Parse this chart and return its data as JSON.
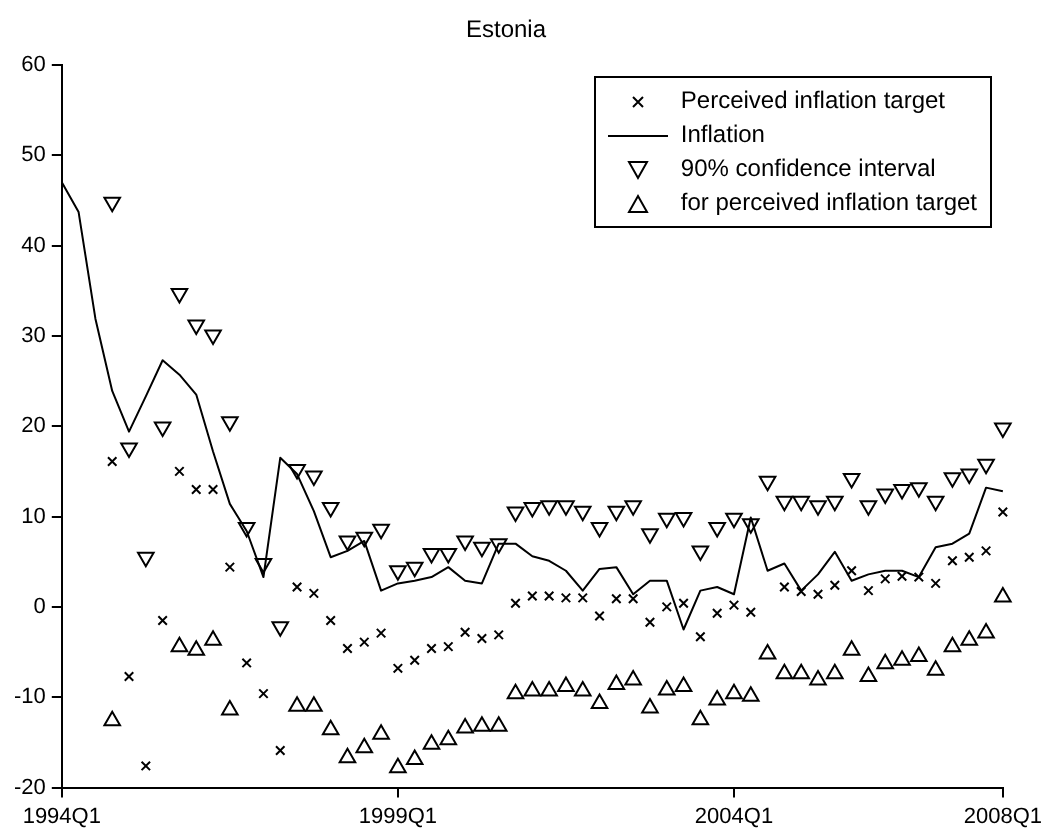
{
  "chart_data": {
    "type": "line",
    "title": "Estonia",
    "categories": [
      "1994Q1",
      null,
      null,
      null,
      null,
      null,
      null,
      null,
      null,
      null,
      null,
      null,
      null,
      null,
      null,
      null,
      null,
      null,
      null,
      null,
      "1999Q1",
      null,
      null,
      null,
      null,
      null,
      null,
      null,
      null,
      null,
      null,
      null,
      null,
      null,
      null,
      null,
      null,
      null,
      null,
      null,
      "2004Q1",
      null,
      null,
      null,
      null,
      null,
      null,
      null,
      null,
      null,
      null,
      null,
      null,
      null,
      null,
      null,
      "2008Q1"
    ],
    "series": [
      {
        "name": "Perceived inflation target",
        "type": "scatter",
        "marker": "cross",
        "color": "#000000",
        "values": [
          null,
          null,
          null,
          16.1,
          -7.7,
          -17.6,
          -1.5,
          15.0,
          13.0,
          13.0,
          4.4,
          -6.2,
          -9.6,
          -15.9,
          2.2,
          1.5,
          -1.5,
          -4.6,
          -3.9,
          -2.9,
          -6.8,
          -5.9,
          -4.6,
          -4.4,
          -2.8,
          -3.5,
          -3.1,
          0.4,
          1.2,
          1.2,
          1.0,
          1.0,
          -1.0,
          0.9,
          0.9,
          -1.7,
          0.0,
          0.4,
          -3.3,
          -0.7,
          0.2,
          -0.6,
          null,
          2.2,
          1.7,
          1.4,
          2.4,
          4.0,
          1.8,
          3.1,
          3.4,
          3.3,
          2.6,
          5.1,
          5.5,
          6.2,
          10.5
        ]
      },
      {
        "name": "Inflation",
        "type": "line",
        "marker": "none",
        "line_style": "solid",
        "color": "#000000",
        "values": [
          47.0,
          43.7,
          31.9,
          23.9,
          19.4,
          23.3,
          27.3,
          25.7,
          23.5,
          17.2,
          11.4,
          8.4,
          3.3,
          16.5,
          14.7,
          10.6,
          5.5,
          6.2,
          7.3,
          1.8,
          2.6,
          2.9,
          3.3,
          4.4,
          2.9,
          2.6,
          7.0,
          7.0,
          5.6,
          5.1,
          4.0,
          1.8,
          4.2,
          4.4,
          1.4,
          2.9,
          2.9,
          -2.5,
          1.8,
          2.2,
          1.4,
          9.9,
          4.0,
          4.8,
          1.8,
          3.6,
          6.1,
          2.9,
          3.6,
          4.0,
          4.0,
          3.3,
          6.6,
          7.0,
          8.1,
          13.2,
          12.8
        ]
      },
      {
        "name": "90% confidence interval",
        "type": "scatter",
        "marker": "triangle_down",
        "color": "#000000",
        "values": [
          null,
          null,
          null,
          44.8,
          17.6,
          5.5,
          19.9,
          34.7,
          31.2,
          30.1,
          20.5,
          8.8,
          4.8,
          -2.2,
          15.2,
          14.5,
          11.0,
          7.3,
          7.7,
          8.6,
          4.0,
          4.4,
          5.9,
          5.9,
          7.3,
          6.6,
          7.0,
          10.5,
          11.0,
          11.2,
          11.2,
          10.6,
          8.8,
          10.6,
          11.2,
          8.1,
          9.8,
          9.9,
          6.2,
          8.8,
          9.8,
          9.2,
          13.9,
          11.7,
          11.7,
          11.2,
          11.7,
          14.2,
          11.2,
          12.5,
          13.0,
          13.2,
          11.7,
          14.3,
          14.7,
          15.8,
          19.8
        ]
      },
      {
        "name": "for perceived inflation target",
        "type": "scatter",
        "marker": "triangle",
        "color": "#000000",
        "values": [
          null,
          null,
          null,
          -12.6,
          null,
          null,
          null,
          -4.4,
          -4.8,
          -3.7,
          -11.4,
          null,
          null,
          null,
          -11.0,
          -11.0,
          -13.6,
          -16.7,
          -15.6,
          -14.1,
          -17.8,
          -16.9,
          -15.2,
          -14.7,
          -13.4,
          -13.2,
          -13.2,
          -9.6,
          -9.3,
          -9.3,
          -8.8,
          -9.3,
          -10.7,
          -8.6,
          -8.1,
          -11.2,
          -9.2,
          -8.8,
          -12.5,
          -10.3,
          -9.6,
          -9.9,
          -5.2,
          -7.4,
          -7.4,
          -8.1,
          -7.4,
          -4.8,
          -7.7,
          -6.3,
          -5.9,
          -5.5,
          -7.0,
          -4.4,
          -3.7,
          -2.9,
          1.1
        ]
      }
    ],
    "ylim": [
      -20,
      60
    ],
    "yticks": [
      -20,
      -10,
      0,
      10,
      20,
      30,
      40,
      50,
      60
    ],
    "grid": false,
    "legend": "top right"
  }
}
